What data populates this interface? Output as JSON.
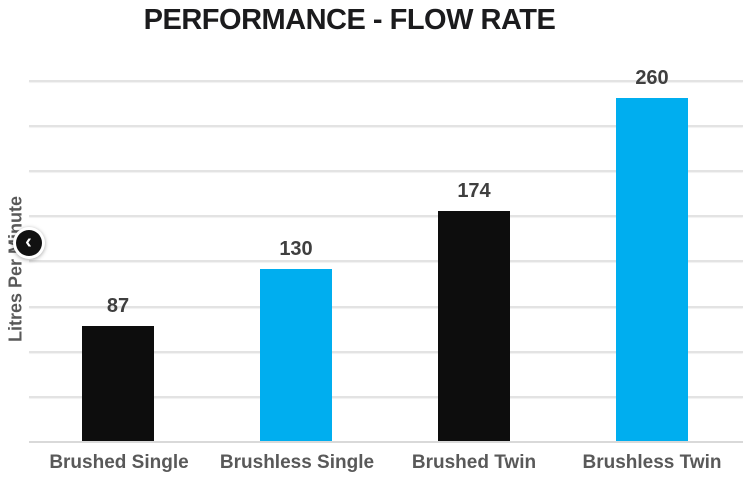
{
  "title": "PERFORMANCE - FLOW RATE",
  "chart_data": {
    "type": "bar",
    "title": "PERFORMANCE - FLOW RATE",
    "categories": [
      "Brushed Single",
      "Brushless Single",
      "Brushed Twin",
      "Brushless Twin"
    ],
    "values": [
      87,
      130,
      174,
      260
    ],
    "value_labels": [
      "87",
      "130",
      "174",
      "260"
    ],
    "xlabel": "",
    "ylabel": "Litres Per Minute",
    "ylim": [
      0,
      290
    ],
    "grid": "horizontal",
    "gridline_count": 8,
    "legend": "none",
    "bar_colors": [
      "#0d0d0d",
      "#00aeef",
      "#0d0d0d",
      "#00aeef"
    ]
  },
  "carousel": {
    "prev_icon": "‹"
  },
  "colors": {
    "accent_cyan": "#00aeef",
    "bar_black": "#0d0d0d",
    "category_label_gray": "#595959",
    "value_label_gray": "#3f3f3f",
    "gridline_gray": "#e3e3e3",
    "title_black": "#1b1b1d"
  }
}
